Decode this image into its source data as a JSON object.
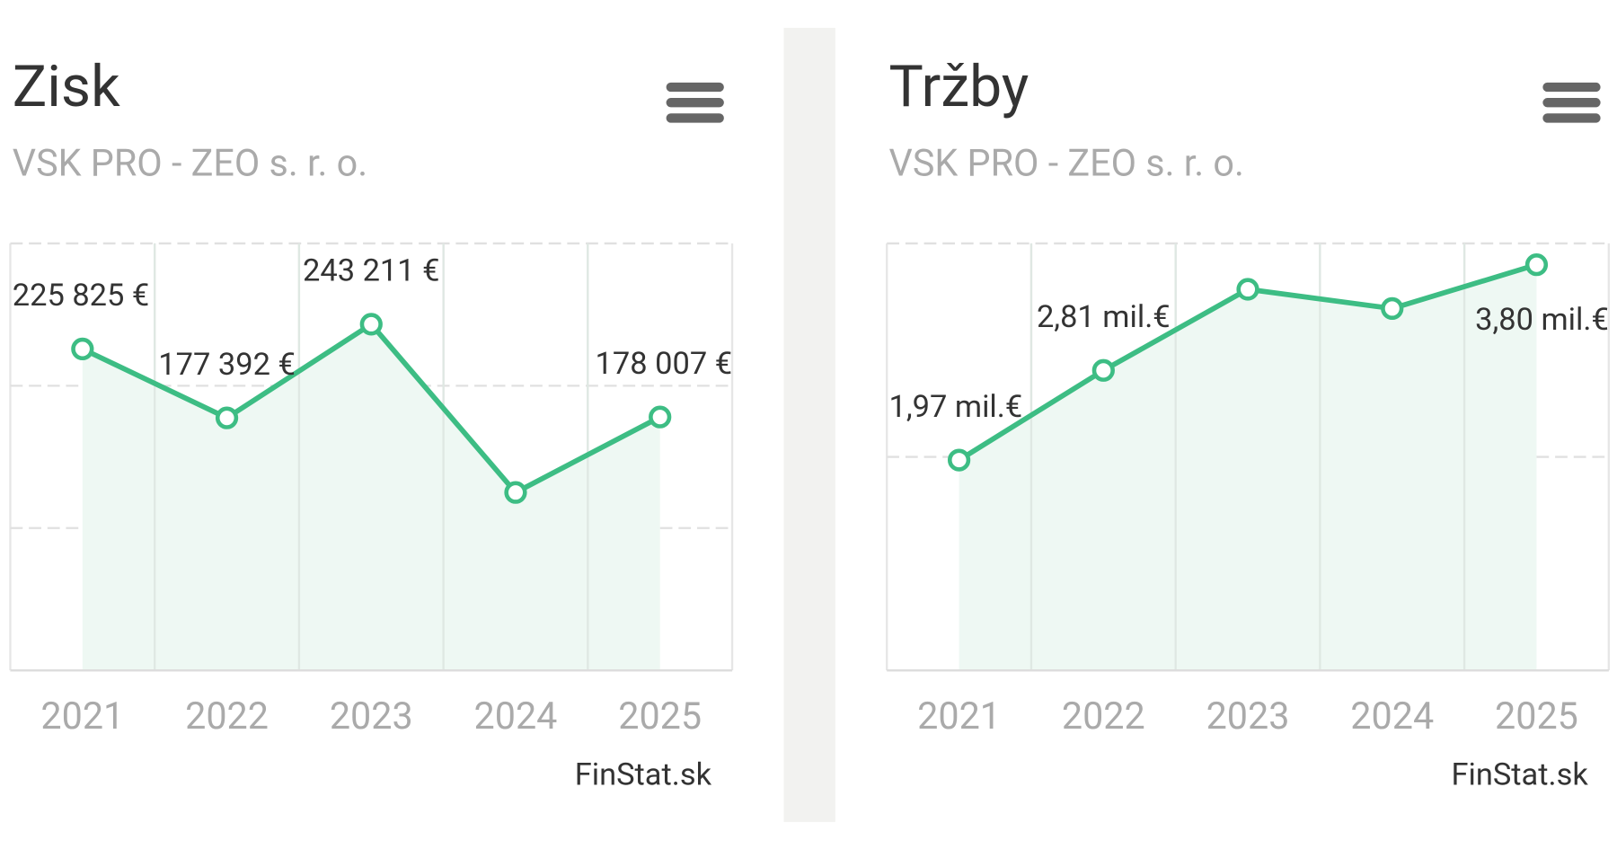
{
  "chart_data": [
    {
      "type": "line",
      "title": "Zisk",
      "subtitle": "VSK PRO - ZEO s. r. o.",
      "categories": [
        "2021",
        "2022",
        "2023",
        "2024",
        "2025"
      ],
      "values": [
        225825,
        177392,
        243211,
        125000,
        178007
      ],
      "value_labels": [
        "225 825 €",
        "177 392 €",
        "243 211 €",
        null,
        "178 007 €"
      ],
      "color": "#3dbd84",
      "ylim": [
        0,
        300000
      ],
      "yticks": [
        0,
        100000,
        200000,
        300000
      ],
      "grid": true,
      "credits": "FinStat.sk"
    },
    {
      "type": "line",
      "title": "Tržby",
      "subtitle": "VSK PRO - ZEO s. r. o.",
      "categories": [
        "2021",
        "2022",
        "2023",
        "2024",
        "2025"
      ],
      "values": [
        1.97,
        2.81,
        3.57,
        3.39,
        3.8
      ],
      "value_labels": [
        "1,97 mil.€",
        "2,81 mil.€",
        null,
        null,
        "3,80 mil.€"
      ],
      "color": "#3dbd84",
      "ylim": [
        0,
        4
      ],
      "yticks": [
        0,
        2,
        4
      ],
      "grid": true,
      "credits": "FinStat.sk"
    }
  ]
}
